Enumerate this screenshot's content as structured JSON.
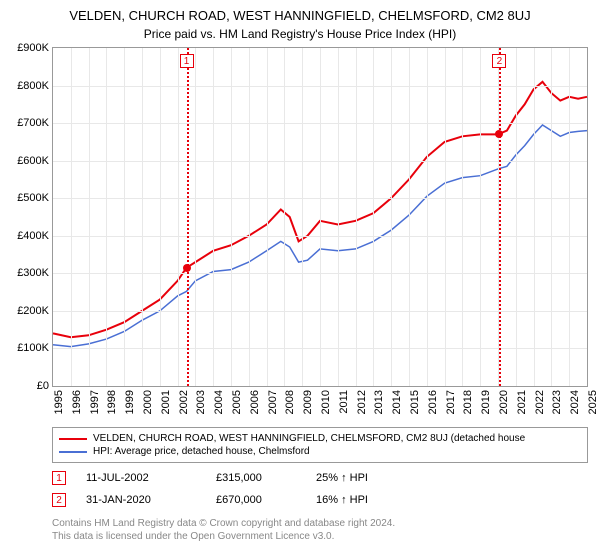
{
  "title": "VELDEN, CHURCH ROAD, WEST HANNINGFIELD, CHELMSFORD, CM2 8UJ",
  "subtitle": "Price paid vs. HM Land Registry's House Price Index (HPI)",
  "yaxis": {
    "min": 0,
    "max": 900000,
    "ticks": [
      0,
      100000,
      200000,
      300000,
      400000,
      500000,
      600000,
      700000,
      800000,
      900000
    ],
    "labels": [
      "£0",
      "£100K",
      "£200K",
      "£300K",
      "£400K",
      "£500K",
      "£600K",
      "£700K",
      "£800K",
      "£900K"
    ]
  },
  "xaxis": {
    "min": 1995,
    "max": 2025,
    "ticks": [
      1995,
      1996,
      1997,
      1998,
      1999,
      2000,
      2001,
      2002,
      2003,
      2004,
      2005,
      2006,
      2007,
      2008,
      2009,
      2010,
      2011,
      2012,
      2013,
      2014,
      2015,
      2016,
      2017,
      2018,
      2019,
      2020,
      2021,
      2022,
      2023,
      2024,
      2025
    ]
  },
  "colors": {
    "series_property": "#e8000b",
    "series_hpi": "#4a6fd4",
    "grid": "#e8e8e8",
    "border": "#999999",
    "text": "#000000",
    "attribution": "#888888",
    "background": "#ffffff"
  },
  "series": {
    "property": {
      "label": "VELDEN, CHURCH ROAD, WEST HANNINGFIELD, CHELMSFORD, CM2 8UJ (detached house",
      "line_width": 2,
      "data": [
        [
          1995.0,
          140000
        ],
        [
          1996.0,
          130000
        ],
        [
          1997.0,
          135000
        ],
        [
          1998.0,
          150000
        ],
        [
          1999.0,
          170000
        ],
        [
          2000.0,
          200000
        ],
        [
          2001.0,
          230000
        ],
        [
          2002.0,
          280000
        ],
        [
          2002.5,
          315000
        ],
        [
          2003.0,
          330000
        ],
        [
          2004.0,
          360000
        ],
        [
          2005.0,
          375000
        ],
        [
          2006.0,
          400000
        ],
        [
          2007.0,
          430000
        ],
        [
          2007.8,
          470000
        ],
        [
          2008.3,
          450000
        ],
        [
          2008.8,
          385000
        ],
        [
          2009.3,
          400000
        ],
        [
          2010.0,
          440000
        ],
        [
          2011.0,
          430000
        ],
        [
          2012.0,
          440000
        ],
        [
          2013.0,
          460000
        ],
        [
          2014.0,
          500000
        ],
        [
          2015.0,
          550000
        ],
        [
          2016.0,
          610000
        ],
        [
          2017.0,
          650000
        ],
        [
          2018.0,
          665000
        ],
        [
          2019.0,
          670000
        ],
        [
          2020.0,
          670000
        ],
        [
          2020.5,
          680000
        ],
        [
          2021.0,
          720000
        ],
        [
          2021.5,
          750000
        ],
        [
          2022.0,
          790000
        ],
        [
          2022.5,
          810000
        ],
        [
          2023.0,
          780000
        ],
        [
          2023.5,
          760000
        ],
        [
          2024.0,
          770000
        ],
        [
          2024.5,
          765000
        ],
        [
          2025.0,
          770000
        ]
      ]
    },
    "hpi": {
      "label": "HPI: Average price, detached house, Chelmsford",
      "line_width": 1.5,
      "data": [
        [
          1995.0,
          110000
        ],
        [
          1996.0,
          105000
        ],
        [
          1997.0,
          112000
        ],
        [
          1998.0,
          125000
        ],
        [
          1999.0,
          145000
        ],
        [
          2000.0,
          175000
        ],
        [
          2001.0,
          200000
        ],
        [
          2002.0,
          240000
        ],
        [
          2002.5,
          252000
        ],
        [
          2003.0,
          280000
        ],
        [
          2004.0,
          305000
        ],
        [
          2005.0,
          310000
        ],
        [
          2006.0,
          330000
        ],
        [
          2007.0,
          360000
        ],
        [
          2007.8,
          385000
        ],
        [
          2008.3,
          370000
        ],
        [
          2008.8,
          330000
        ],
        [
          2009.3,
          335000
        ],
        [
          2010.0,
          365000
        ],
        [
          2011.0,
          360000
        ],
        [
          2012.0,
          365000
        ],
        [
          2013.0,
          385000
        ],
        [
          2014.0,
          415000
        ],
        [
          2015.0,
          455000
        ],
        [
          2016.0,
          505000
        ],
        [
          2017.0,
          540000
        ],
        [
          2018.0,
          555000
        ],
        [
          2019.0,
          560000
        ],
        [
          2020.0,
          578000
        ],
        [
          2020.5,
          585000
        ],
        [
          2021.0,
          615000
        ],
        [
          2021.5,
          640000
        ],
        [
          2022.0,
          670000
        ],
        [
          2022.5,
          695000
        ],
        [
          2023.0,
          680000
        ],
        [
          2023.5,
          665000
        ],
        [
          2024.0,
          675000
        ],
        [
          2024.5,
          678000
        ],
        [
          2025.0,
          680000
        ]
      ]
    }
  },
  "markers": [
    {
      "id": "1",
      "x": 2002.5,
      "y": 315000,
      "color": "#e8000b"
    },
    {
      "id": "2",
      "x": 2020.08,
      "y": 670000,
      "color": "#e8000b"
    }
  ],
  "sales": [
    {
      "id": "1",
      "date": "11-JUL-2002",
      "price": "£315,000",
      "hpi": "25% ↑ HPI",
      "color": "#e8000b"
    },
    {
      "id": "2",
      "date": "31-JAN-2020",
      "price": "£670,000",
      "hpi": "16% ↑ HPI",
      "color": "#e8000b"
    }
  ],
  "attribution": {
    "line1": "Contains HM Land Registry data © Crown copyright and database right 2024.",
    "line2": "This data is licensed under the Open Government Licence v3.0."
  }
}
